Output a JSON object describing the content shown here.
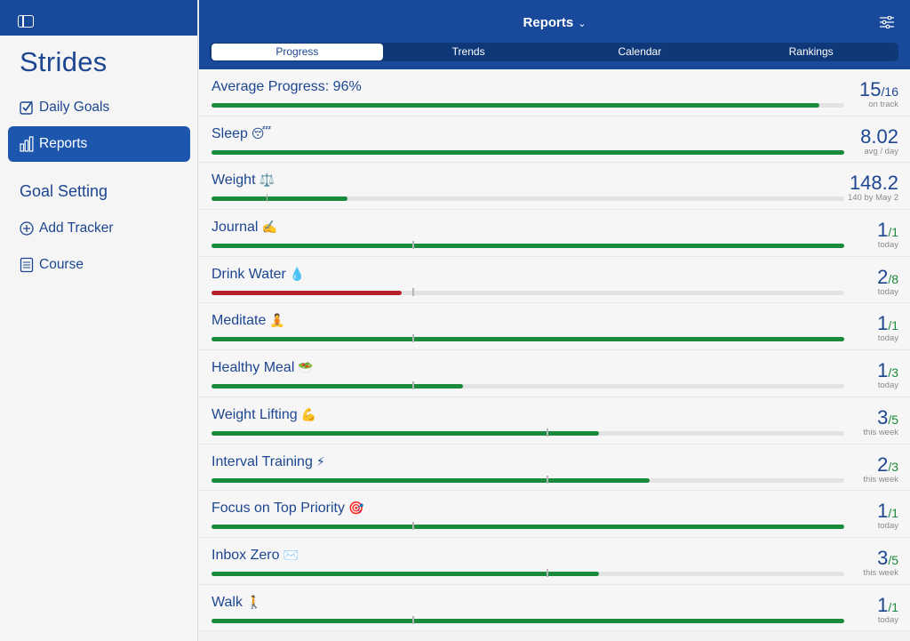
{
  "sidebar": {
    "app_title": "Strides",
    "items": [
      {
        "label": "Daily Goals"
      },
      {
        "label": "Reports"
      },
      {
        "label": "Add Tracker"
      },
      {
        "label": "Course"
      }
    ],
    "section_title": "Goal Setting"
  },
  "header": {
    "title": "Reports",
    "tabs": [
      {
        "label": "Progress"
      },
      {
        "label": "Trends"
      },
      {
        "label": "Calendar"
      },
      {
        "label": "Rankings"
      }
    ]
  },
  "colors": {
    "brand": "#19499b",
    "good": "#1a8a3c",
    "bad": "#b5202a"
  },
  "rows": [
    {
      "name": "Average Progress: 96%",
      "emoji": "",
      "main": "15",
      "sub": "/16",
      "caption": "on track",
      "progress": 0.96,
      "target": null,
      "status": "good"
    },
    {
      "name": "Sleep",
      "emoji": "😴",
      "main": "8.02",
      "sub": "",
      "caption": "avg / day",
      "progress": 1.0,
      "target": null,
      "status": "good"
    },
    {
      "name": "Weight",
      "emoji": "⚖️",
      "main": "148.2",
      "sub": "",
      "caption": "140 by May 2",
      "progress": 0.215,
      "target": 0.087,
      "status": "good"
    },
    {
      "name": "Journal",
      "emoji": "✍️",
      "main": "1",
      "sub": "/1",
      "caption": "today",
      "progress": 1.0,
      "target": 0.318,
      "status": "good"
    },
    {
      "name": "Drink Water",
      "emoji": "💧",
      "main": "2",
      "sub": "/8",
      "caption": "today",
      "progress": 0.3,
      "target": 0.318,
      "status": "bad"
    },
    {
      "name": "Meditate",
      "emoji": "🧘",
      "main": "1",
      "sub": "/1",
      "caption": "today",
      "progress": 1.0,
      "target": 0.318,
      "status": "good"
    },
    {
      "name": "Healthy Meal",
      "emoji": "🥗",
      "main": "1",
      "sub": "/3",
      "caption": "today",
      "progress": 0.398,
      "target": 0.318,
      "status": "good"
    },
    {
      "name": "Weight Lifting",
      "emoji": "💪",
      "main": "3",
      "sub": "/5",
      "caption": "this week",
      "progress": 0.613,
      "target": 0.53,
      "status": "good"
    },
    {
      "name": "Interval Training",
      "emoji": "⚡",
      "main": "2",
      "sub": "/3",
      "caption": "this week",
      "progress": 0.693,
      "target": 0.53,
      "status": "good"
    },
    {
      "name": "Focus on Top Priority",
      "emoji": "🎯",
      "main": "1",
      "sub": "/1",
      "caption": "today",
      "progress": 1.0,
      "target": 0.318,
      "status": "good"
    },
    {
      "name": "Inbox Zero",
      "emoji": "✉️",
      "main": "3",
      "sub": "/5",
      "caption": "this week",
      "progress": 0.613,
      "target": 0.53,
      "status": "good"
    },
    {
      "name": "Walk",
      "emoji": "🚶",
      "main": "1",
      "sub": "/1",
      "caption": "today",
      "progress": 1.0,
      "target": 0.318,
      "status": "good"
    }
  ]
}
